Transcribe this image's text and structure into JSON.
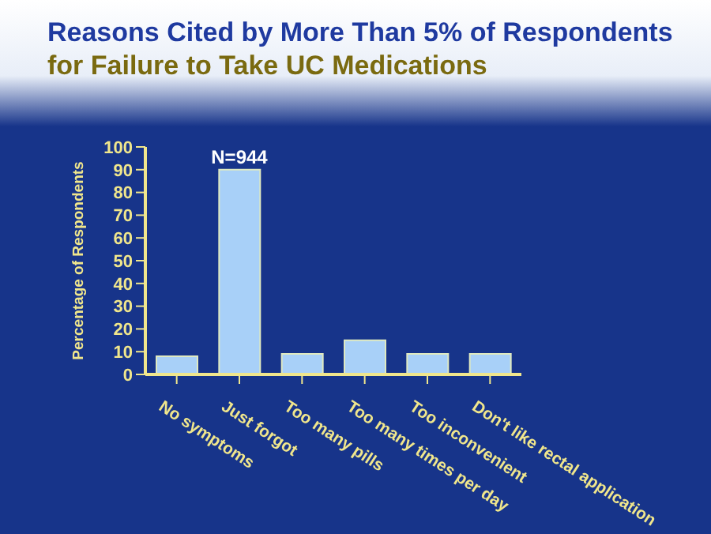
{
  "chart_data": {
    "type": "bar",
    "title": "Reasons Cited by More Than 5% of Respondents\nfor Failure to Take UC Medications",
    "categories": [
      "No symptoms",
      "Just forgot",
      "Too many pills",
      "Too many times per day",
      "Too inconvenient",
      "Don't like rectal application"
    ],
    "values": [
      8,
      90,
      9,
      15,
      9,
      9
    ],
    "color": "#a8d0f8",
    "ylabel": "Percentage of Respondents",
    "ylim": [
      0,
      100
    ],
    "yticks": [
      0,
      10,
      20,
      30,
      40,
      50,
      60,
      70,
      80,
      90,
      100
    ],
    "grid": false,
    "legend": false,
    "annotations": [
      {
        "text": "N=944",
        "x": "Just forgot",
        "y": 90
      }
    ]
  }
}
